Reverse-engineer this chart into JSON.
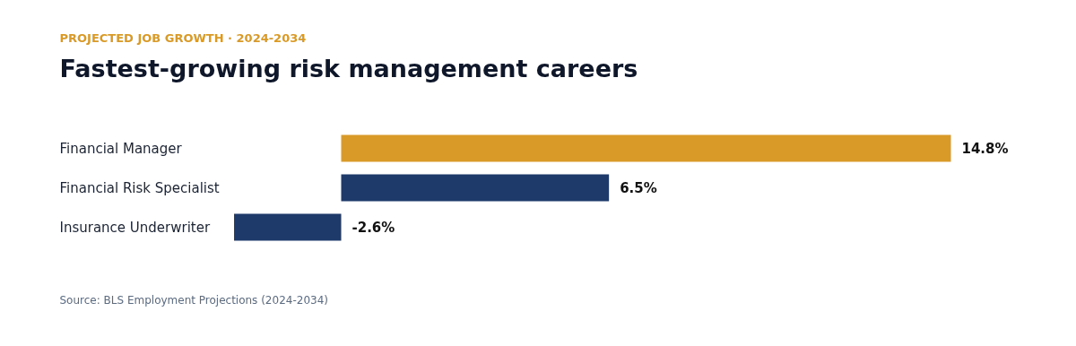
{
  "chart_data": {
    "type": "bar",
    "orientation": "horizontal",
    "subtitle": "PROJECTED JOB GROWTH · 2024-2034",
    "title": "Fastest-growing risk management careers",
    "categories": [
      "Financial Manager",
      "Financial Risk Specialist",
      "Insurance Underwriter"
    ],
    "values": [
      14.8,
      6.5,
      -2.6
    ],
    "colors": [
      "#d99a28",
      "#1d3a6b",
      "#1d3a6b"
    ],
    "value_labels": [
      "14.8%",
      "6.5%",
      "-2.6%"
    ],
    "annotations": [
      "Source: BLS Employment Projections (2024-2034)"
    ]
  }
}
